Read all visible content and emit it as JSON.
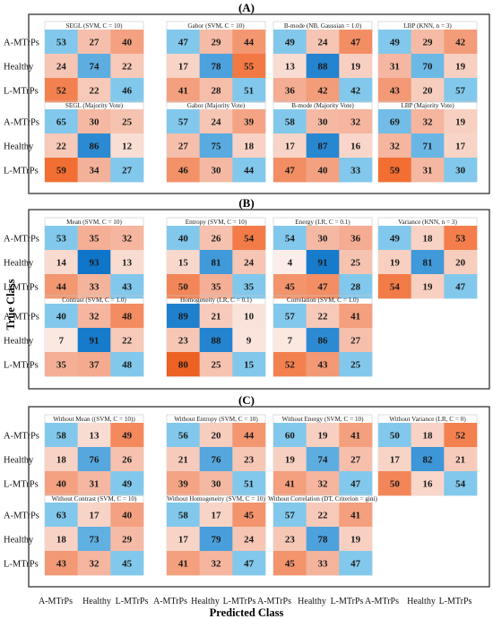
{
  "figure": {
    "y_axis_label": "True Class",
    "x_axis_label": "Predicted Class",
    "row_labels": [
      "A-MTrPs",
      "Healthy",
      "L-MTrPs"
    ],
    "col_labels": [
      "A-MTrPs",
      "Healthy",
      "L-MTrPs"
    ],
    "colors": {
      "white": "#fbf0ec",
      "red_strong": "#f26b2e",
      "blue_strong": "#0f75c9",
      "border": "#222222"
    }
  },
  "chart_data": [
    {
      "type": "heatmap",
      "section": "(A)",
      "panels": [
        {
          "title": "SEGL (SVM, C = 10)",
          "values": [
            [
              53,
              27,
              40
            ],
            [
              24,
              74,
              22
            ],
            [
              52,
              22,
              46
            ]
          ]
        },
        {
          "title": "Gabor (SVM, C = 10)",
          "values": [
            [
              47,
              29,
              44
            ],
            [
              17,
              78,
              55
            ],
            [
              41,
              28,
              51
            ]
          ]
        },
        {
          "title": "B-mode (NB, Gaussian = 1.0)",
          "values": [
            [
              49,
              24,
              47
            ],
            [
              13,
              88,
              19
            ],
            [
              36,
              42,
              42
            ]
          ]
        },
        {
          "title": "LBP (KNN, n = 3)",
          "values": [
            [
              49,
              29,
              42
            ],
            [
              31,
              70,
              19
            ],
            [
              43,
              20,
              57
            ]
          ]
        },
        {
          "title": "SEGL (Majority Vote)",
          "values": [
            [
              65,
              30,
              25
            ],
            [
              22,
              86,
              12
            ],
            [
              59,
              34,
              27
            ]
          ]
        },
        {
          "title": "Gabor (Majority Vote)",
          "values": [
            [
              57,
              24,
              39
            ],
            [
              27,
              75,
              18
            ],
            [
              46,
              30,
              44
            ]
          ]
        },
        {
          "title": "B-mode (Majority Vote)",
          "values": [
            [
              58,
              30,
              32
            ],
            [
              17,
              87,
              16
            ],
            [
              47,
              40,
              33
            ]
          ]
        },
        {
          "title": "LBP (Majority Vote)",
          "values": [
            [
              69,
              32,
              19
            ],
            [
              32,
              71,
              17
            ],
            [
              59,
              31,
              30
            ]
          ]
        }
      ]
    },
    {
      "type": "heatmap",
      "section": "(B)",
      "panels": [
        {
          "title": "Mean (SVM, C = 10)",
          "values": [
            [
              53,
              35,
              32
            ],
            [
              14,
              93,
              13
            ],
            [
              44,
              33,
              43
            ]
          ]
        },
        {
          "title": "Entropy (SVM, C = 10)",
          "values": [
            [
              40,
              26,
              54
            ],
            [
              15,
              81,
              24
            ],
            [
              50,
              35,
              35
            ]
          ]
        },
        {
          "title": "Energy (LR, C = 0.1)",
          "values": [
            [
              54,
              30,
              36
            ],
            [
              4,
              91,
              25
            ],
            [
              45,
              47,
              28
            ]
          ]
        },
        {
          "title": "Variance (KNN, n = 3)",
          "values": [
            [
              49,
              18,
              53
            ],
            [
              19,
              81,
              20
            ],
            [
              54,
              19,
              47
            ]
          ]
        },
        {
          "title": "Contrast (SVM, C = 1.0)",
          "values": [
            [
              40,
              32,
              48
            ],
            [
              7,
              91,
              22
            ],
            [
              35,
              37,
              48
            ]
          ]
        },
        {
          "title": "Homogeneity (LR, C = 0.1)",
          "values": [
            [
              89,
              21,
              10
            ],
            [
              23,
              88,
              9
            ],
            [
              80,
              25,
              15
            ]
          ]
        },
        {
          "title": "Correlation (SVM, C = 1.0)",
          "values": [
            [
              57,
              22,
              41
            ],
            [
              7,
              86,
              27
            ],
            [
              52,
              43,
              25
            ]
          ]
        }
      ]
    },
    {
      "type": "heatmap",
      "section": "(C)",
      "panels": [
        {
          "title": "Without Mean ((SVM, C = 10))",
          "values": [
            [
              58,
              13,
              49
            ],
            [
              18,
              76,
              26
            ],
            [
              40,
              31,
              49
            ]
          ]
        },
        {
          "title": "Without Entropy (SVM, C = 10)",
          "values": [
            [
              56,
              20,
              44
            ],
            [
              21,
              76,
              23
            ],
            [
              39,
              30,
              51
            ]
          ]
        },
        {
          "title": "Without Energy (SVM, C = 10)",
          "values": [
            [
              60,
              19,
              41
            ],
            [
              19,
              74,
              27
            ],
            [
              41,
              32,
              47
            ]
          ]
        },
        {
          "title": "Without Variance (LR, C = 0)",
          "values": [
            [
              50,
              18,
              52
            ],
            [
              17,
              82,
              21
            ],
            [
              50,
              16,
              54
            ]
          ]
        },
        {
          "title": "Without Contrast (SVM, C = 10)",
          "values": [
            [
              63,
              17,
              40
            ],
            [
              18,
              73,
              29
            ],
            [
              43,
              32,
              45
            ]
          ]
        },
        {
          "title": "Without Homogeneity (SVM, C = 10)",
          "values": [
            [
              58,
              17,
              45
            ],
            [
              17,
              79,
              24
            ],
            [
              41,
              32,
              47
            ]
          ]
        },
        {
          "title": "Without Correlation (DT, Criterion = gini)",
          "values": [
            [
              57,
              22,
              41
            ],
            [
              23,
              78,
              19
            ],
            [
              45,
              33,
              47
            ]
          ]
        }
      ]
    }
  ]
}
